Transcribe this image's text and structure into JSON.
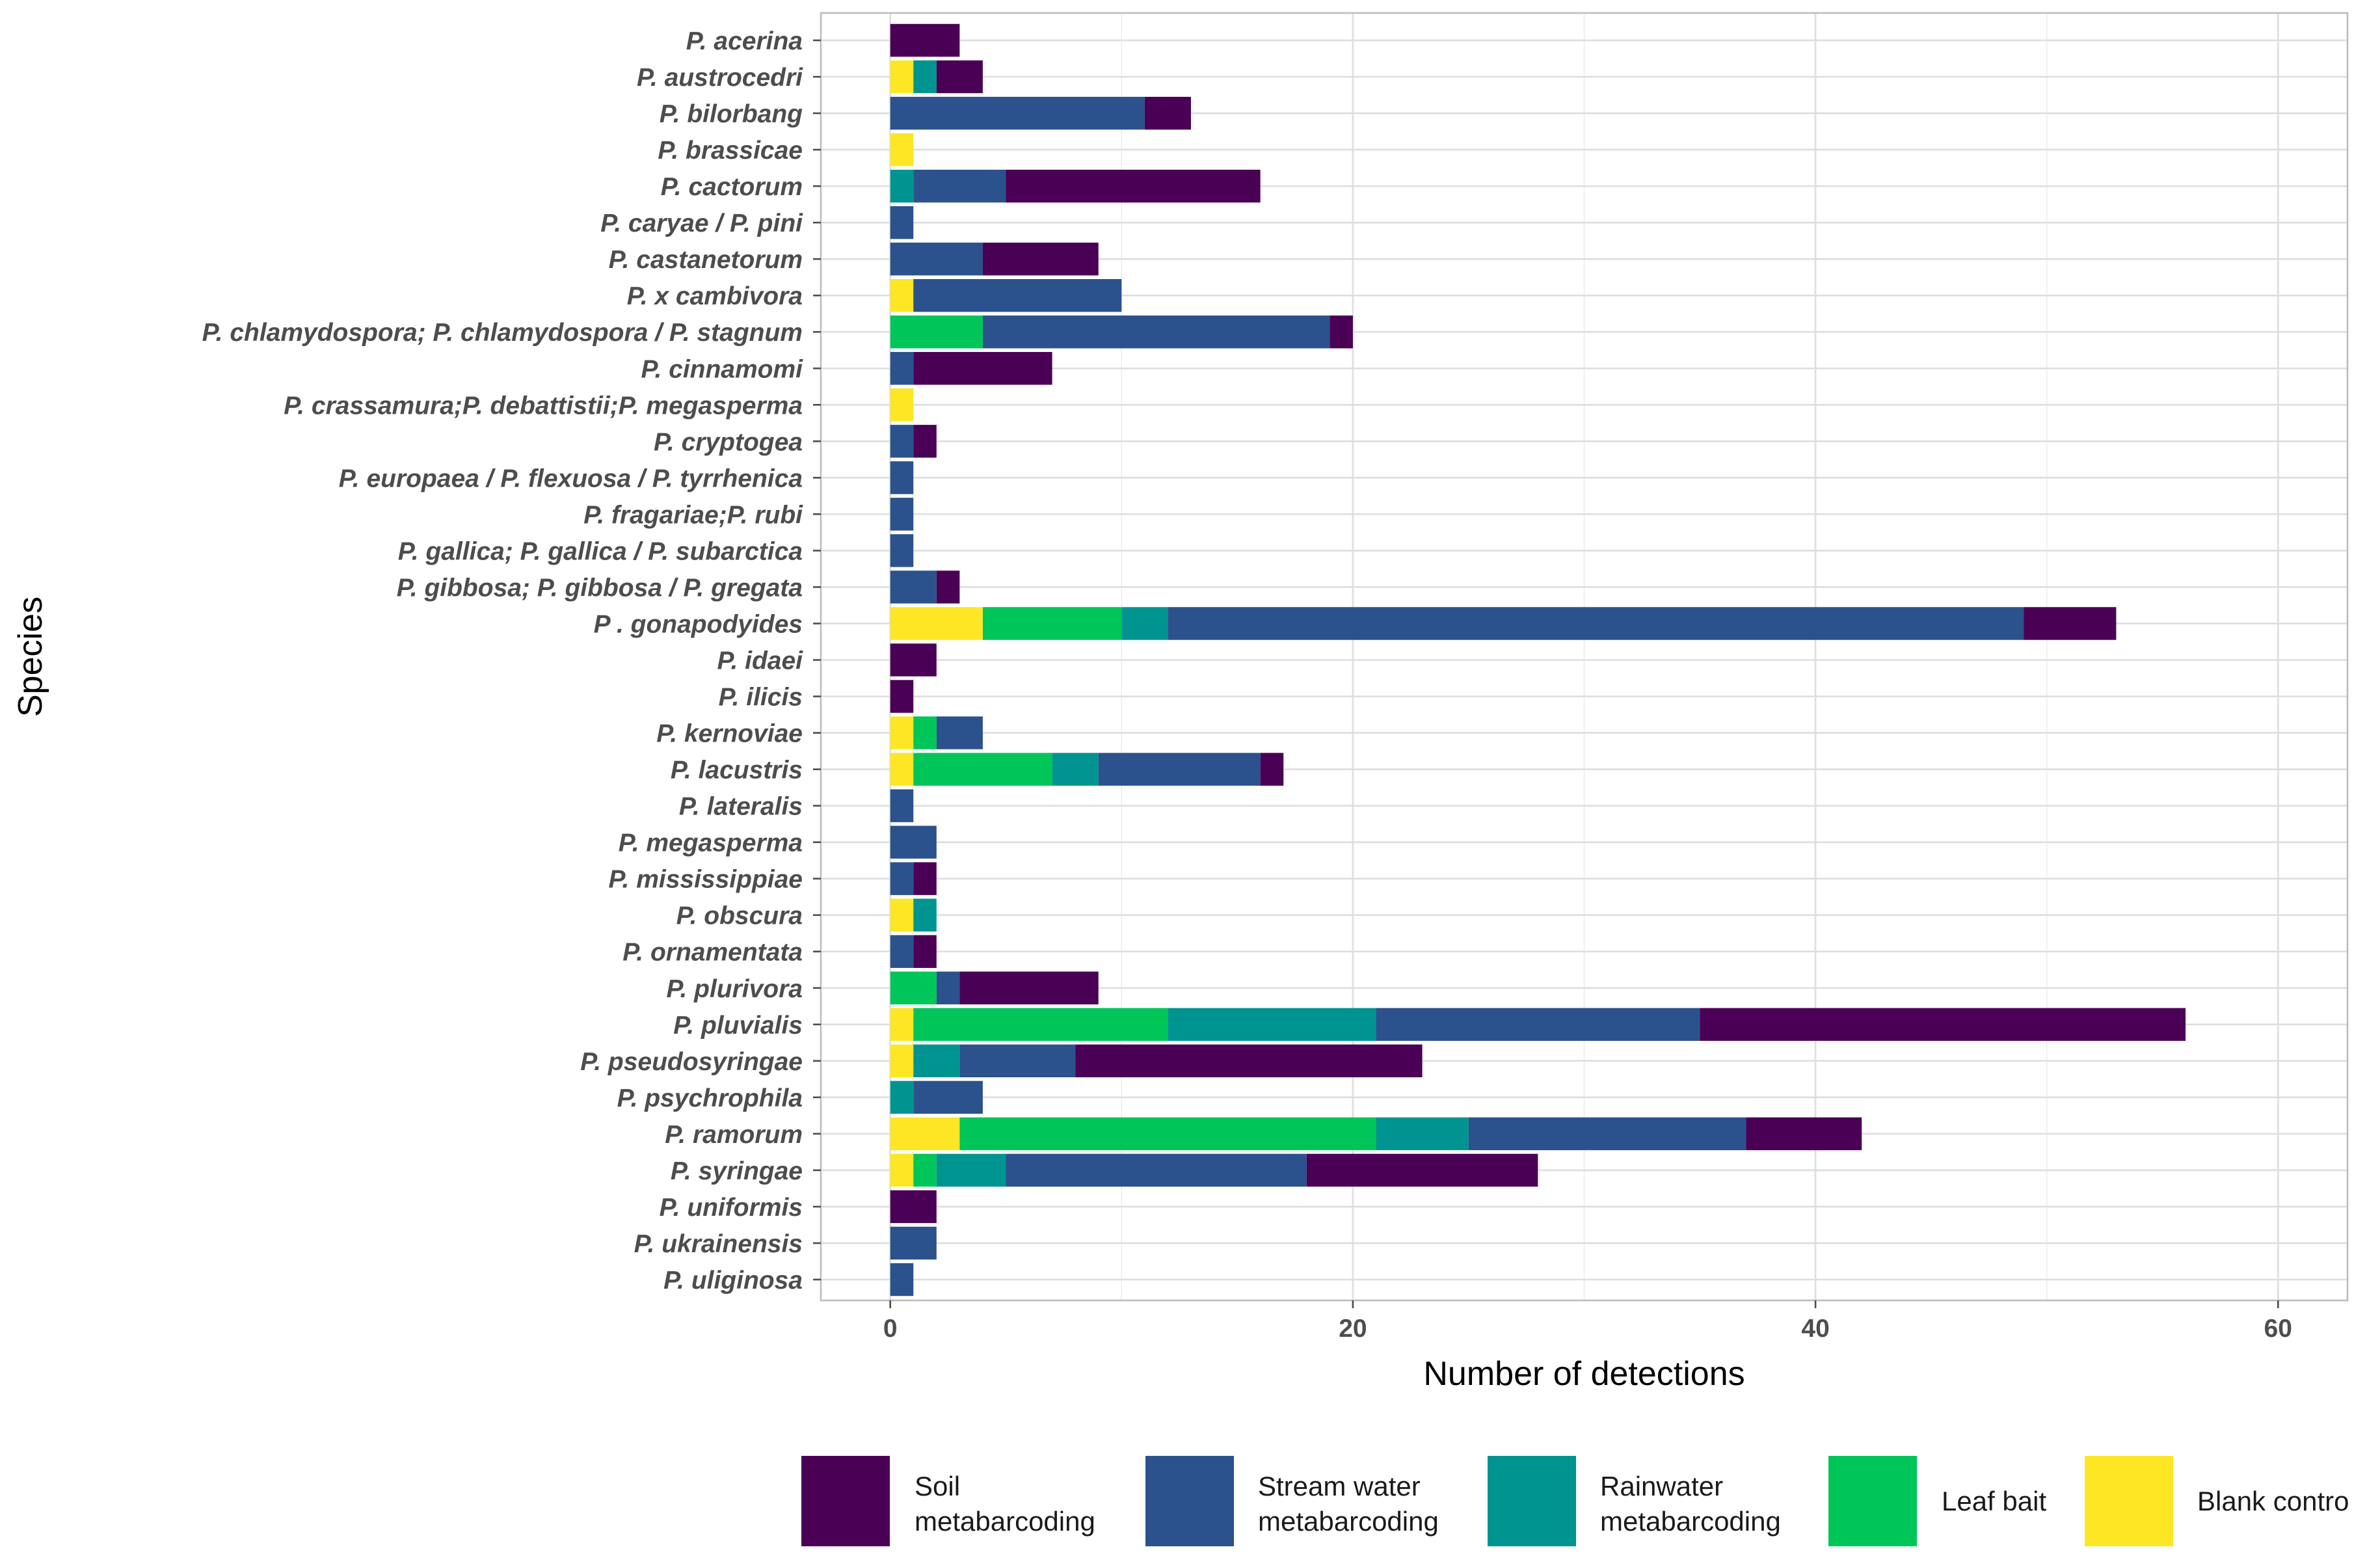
{
  "chart_data": {
    "type": "bar",
    "orientation": "horizontal",
    "stacked": true,
    "title": "",
    "xlabel": "Number of detections",
    "ylabel": "Species",
    "xlim": [
      -3,
      63
    ],
    "xticks": [
      0,
      20,
      40,
      60
    ],
    "grid": true,
    "legend_position": "bottom",
    "categories": [
      "P. acerina",
      "P. austrocedri",
      "P. bilorbang",
      "P. brassicae",
      "P. cactorum",
      "P. caryae / P. pini",
      "P. castanetorum",
      "P. x cambivora",
      "P. chlamydospora; P. chlamydospora / P. stagnum",
      "P. cinnamomi",
      "P. crassamura;P. debattistii;P.  megasperma",
      "P. cryptogea",
      "P. europaea / P. flexuosa / P. tyrrhenica",
      "P. fragariae;P. rubi",
      "P. gallica; P. gallica / P. subarctica",
      "P. gibbosa; P. gibbosa / P. gregata",
      "P . gonapodyides",
      "P. idaei",
      "P. ilicis",
      "P. kernoviae",
      "P. lacustris",
      "P. lateralis",
      "P. megasperma",
      "P. mississippiae",
      "P. obscura",
      "P. ornamentata",
      "P. plurivora",
      "P. pluvialis",
      "P. pseudosyringae",
      "P. psychrophila",
      "P. ramorum",
      "P. syringae",
      "P. uniformis",
      "P. ukrainensis",
      "P. uliginosa"
    ],
    "series": [
      {
        "name": "Blank contro",
        "color": "#FDE725",
        "values": [
          0,
          1,
          0,
          1,
          0,
          0,
          0,
          1,
          0,
          0,
          1,
          0,
          0,
          0,
          0,
          0,
          4,
          0,
          0,
          1,
          1,
          0,
          0,
          0,
          1,
          0,
          0,
          1,
          1,
          0,
          3,
          1,
          0,
          0,
          0
        ]
      },
      {
        "name": "Leaf bait",
        "color": "#00C65A",
        "values": [
          0,
          0,
          0,
          0,
          0,
          0,
          0,
          0,
          4,
          0,
          0,
          0,
          0,
          0,
          0,
          0,
          6,
          0,
          0,
          1,
          6,
          0,
          0,
          0,
          0,
          0,
          2,
          11,
          0,
          0,
          18,
          1,
          0,
          0,
          0
        ]
      },
      {
        "name": "Rainwater metabarcoding",
        "color": "#009490",
        "values": [
          0,
          1,
          0,
          0,
          1,
          0,
          0,
          0,
          0,
          0,
          0,
          0,
          0,
          0,
          0,
          0,
          2,
          0,
          0,
          0,
          2,
          0,
          0,
          0,
          1,
          0,
          0,
          9,
          2,
          1,
          4,
          3,
          0,
          0,
          0
        ]
      },
      {
        "name": "Stream water metabarcoding",
        "color": "#2B528C",
        "values": [
          0,
          0,
          11,
          0,
          4,
          1,
          4,
          9,
          15,
          1,
          0,
          1,
          1,
          1,
          1,
          2,
          37,
          0,
          0,
          2,
          7,
          1,
          2,
          1,
          0,
          1,
          1,
          14,
          5,
          3,
          12,
          13,
          0,
          2,
          1
        ]
      },
      {
        "name": "Soil metabarcoding",
        "color": "#4A0055",
        "values": [
          3,
          2,
          2,
          0,
          11,
          0,
          5,
          0,
          1,
          6,
          0,
          1,
          0,
          0,
          0,
          1,
          4,
          2,
          1,
          0,
          1,
          0,
          0,
          1,
          0,
          1,
          6,
          21,
          15,
          0,
          5,
          10,
          2,
          0,
          0
        ]
      }
    ],
    "legend": [
      {
        "label_line1": "Soil",
        "label_line2": "metabarcoding",
        "color": "#4A0055"
      },
      {
        "label_line1": "Stream water",
        "label_line2": "metabarcoding",
        "color": "#2B528C"
      },
      {
        "label_line1": "Rainwater",
        "label_line2": "metabarcoding",
        "color": "#009490"
      },
      {
        "label_line1": "Leaf bait",
        "label_line2": "",
        "color": "#00C65A"
      },
      {
        "label_line1": "Blank contro",
        "label_line2": "",
        "color": "#FDE725"
      }
    ]
  }
}
